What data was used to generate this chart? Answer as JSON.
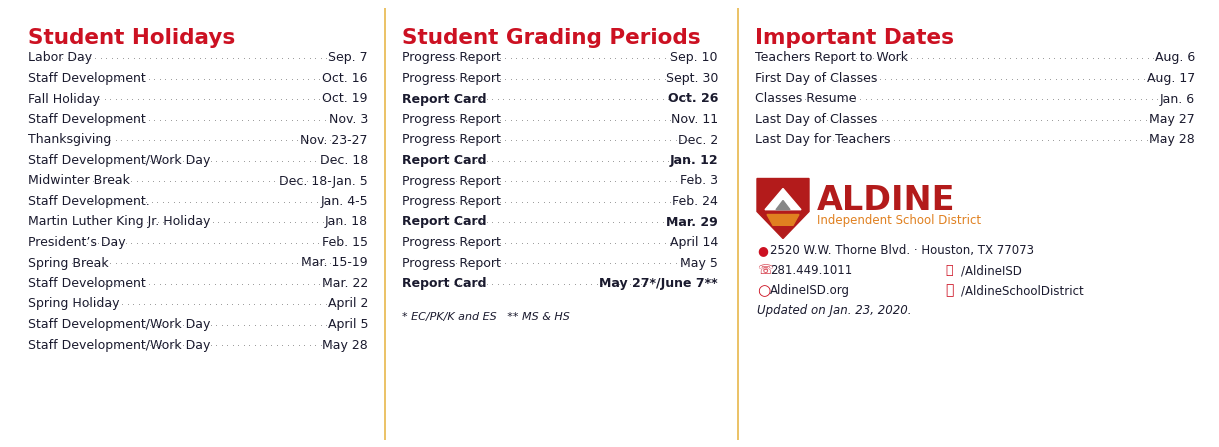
{
  "bg_color": "#ffffff",
  "divider_color": "#e8b84b",
  "title_color": "#cc1122",
  "text_color": "#1a1a2e",
  "col1_title": "Student Holidays",
  "col1_items": [
    [
      "Labor Day",
      "Sep. 7",
      false
    ],
    [
      "Staff Development",
      "Oct. 16",
      false
    ],
    [
      "Fall Holiday",
      "Oct. 19",
      false
    ],
    [
      "Staff Development",
      "Nov. 3",
      false
    ],
    [
      "Thanksgiving",
      "Nov. 23-27",
      false
    ],
    [
      "Staff Development/Work Day",
      "Dec. 18",
      false
    ],
    [
      "Midwinter Break",
      "Dec. 18-Jan. 5",
      false
    ],
    [
      "Staff Development.",
      "Jan. 4-5",
      false
    ],
    [
      "Martin Luther King Jr. Holiday",
      "Jan. 18",
      false
    ],
    [
      "President’s Day",
      "Feb. 15",
      false
    ],
    [
      "Spring Break",
      "Mar. 15-19",
      false
    ],
    [
      "Staff Development",
      "Mar. 22",
      false
    ],
    [
      "Spring Holiday",
      "April 2",
      false
    ],
    [
      "Staff Development/Work Day",
      "April 5",
      false
    ],
    [
      "Staff Development/Work Day",
      "May 28",
      false
    ]
  ],
  "col2_title": "Student Grading Periods",
  "col2_items": [
    [
      "Progress Report",
      "Sep. 10",
      false
    ],
    [
      "Progress Report",
      "Sept. 30",
      false
    ],
    [
      "Report Card",
      "Oct. 26",
      true
    ],
    [
      "Progress Report",
      "Nov. 11",
      false
    ],
    [
      "Progress Report",
      "Dec. 2",
      false
    ],
    [
      "Report Card",
      "Jan. 12",
      true
    ],
    [
      "Progress Report",
      "Feb. 3",
      false
    ],
    [
      "Progress Report",
      "Feb. 24",
      false
    ],
    [
      "Report Card",
      "Mar. 29",
      true
    ],
    [
      "Progress Report",
      "April 14",
      false
    ],
    [
      "Progress Report",
      "May 5",
      false
    ],
    [
      "Report Card",
      "May 27*/June 7**",
      true
    ]
  ],
  "col2_footnote": "* EC/PK/K and ES   ** MS & HS",
  "col3_title": "Important Dates",
  "col3_items": [
    [
      "Teachers Report to Work",
      "Aug. 6"
    ],
    [
      "First Day of Classes",
      "Aug. 17"
    ],
    [
      "Classes Resume",
      "Jan. 6"
    ],
    [
      "Last Day of Classes",
      "May 27"
    ],
    [
      "Last Day for Teachers",
      "May 28"
    ]
  ],
  "logo_name": "ALDINE",
  "logo_sub": "Independent School District",
  "logo_color": "#b31b1b",
  "logo_sub_color": "#e08020",
  "address": "2520 W.W. Thorne Blvd. · Houston, TX 77073",
  "phone": "281.449.1011",
  "twitter": "/AldineISD",
  "web": "AldineISD.org",
  "facebook": "/AldineSchoolDistrict",
  "updated": "Updated on Jan. 23, 2020."
}
